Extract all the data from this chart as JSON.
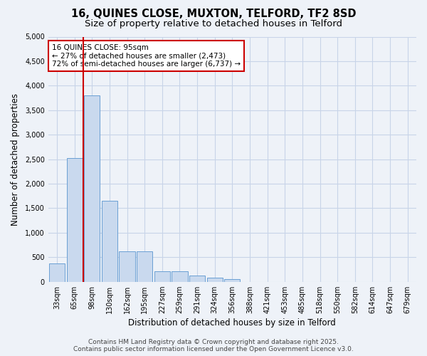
{
  "title_line1": "16, QUINES CLOSE, MUXTON, TELFORD, TF2 8SD",
  "title_line2": "Size of property relative to detached houses in Telford",
  "xlabel": "Distribution of detached houses by size in Telford",
  "ylabel": "Number of detached properties",
  "categories": [
    "33sqm",
    "65sqm",
    "98sqm",
    "130sqm",
    "162sqm",
    "195sqm",
    "227sqm",
    "259sqm",
    "291sqm",
    "324sqm",
    "356sqm",
    "388sqm",
    "421sqm",
    "453sqm",
    "485sqm",
    "518sqm",
    "550sqm",
    "582sqm",
    "614sqm",
    "647sqm",
    "679sqm"
  ],
  "values": [
    370,
    2530,
    3800,
    1650,
    620,
    620,
    220,
    220,
    120,
    80,
    60,
    0,
    0,
    0,
    0,
    0,
    0,
    0,
    0,
    0,
    0
  ],
  "bar_color": "#c9d9ee",
  "bar_edge_color": "#6a9fd4",
  "vline_x": 1.5,
  "vline_color": "#cc0000",
  "ylim": [
    0,
    5000
  ],
  "yticks": [
    0,
    500,
    1000,
    1500,
    2000,
    2500,
    3000,
    3500,
    4000,
    4500,
    5000
  ],
  "annotation_text": "16 QUINES CLOSE: 95sqm\n← 27% of detached houses are smaller (2,473)\n72% of semi-detached houses are larger (6,737) →",
  "annotation_box_color": "#ffffff",
  "annotation_box_edge": "#cc0000",
  "footer_line1": "Contains HM Land Registry data © Crown copyright and database right 2025.",
  "footer_line2": "Contains public sector information licensed under the Open Government Licence v3.0.",
  "bg_color": "#eef2f8",
  "plot_bg_color": "#eef2f8",
  "grid_color": "#c8d4e8",
  "title_fontsize": 10.5,
  "subtitle_fontsize": 9.5,
  "tick_fontsize": 7,
  "label_fontsize": 8.5,
  "footer_fontsize": 6.5
}
